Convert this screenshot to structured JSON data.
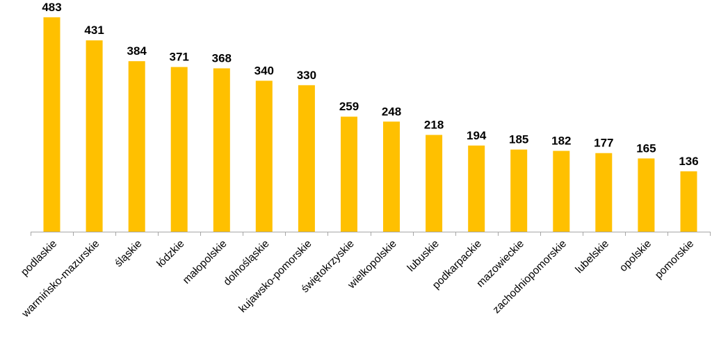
{
  "colors": {
    "bar": "#FFC000",
    "axis": "#A6A6A6",
    "text": "#000000"
  },
  "chart_data": {
    "type": "bar",
    "title": "",
    "xlabel": "",
    "ylabel": "",
    "ylim": [
      0,
      500
    ],
    "grid": false,
    "legend": "none",
    "categories": [
      "podlaskie",
      "warmińsko-mazurskie",
      "śląskie",
      "łódzkie",
      "małopolskie",
      "dolnośląskie",
      "kujawsko-pomorskie",
      "świętokrzyskie",
      "wielkopolskie",
      "lubuskie",
      "podkarpackie",
      "mazowieckie",
      "zachodniopomorskie",
      "lubelskie",
      "opolskie",
      "pomorskie"
    ],
    "values": [
      483,
      431,
      384,
      371,
      368,
      340,
      330,
      259,
      248,
      218,
      194,
      185,
      182,
      177,
      165,
      136
    ],
    "value_labels": [
      "483",
      "431",
      "384",
      "371",
      "368",
      "340",
      "330",
      "259",
      "248",
      "218",
      "194",
      "185",
      "182",
      "177",
      "165",
      "136"
    ]
  }
}
